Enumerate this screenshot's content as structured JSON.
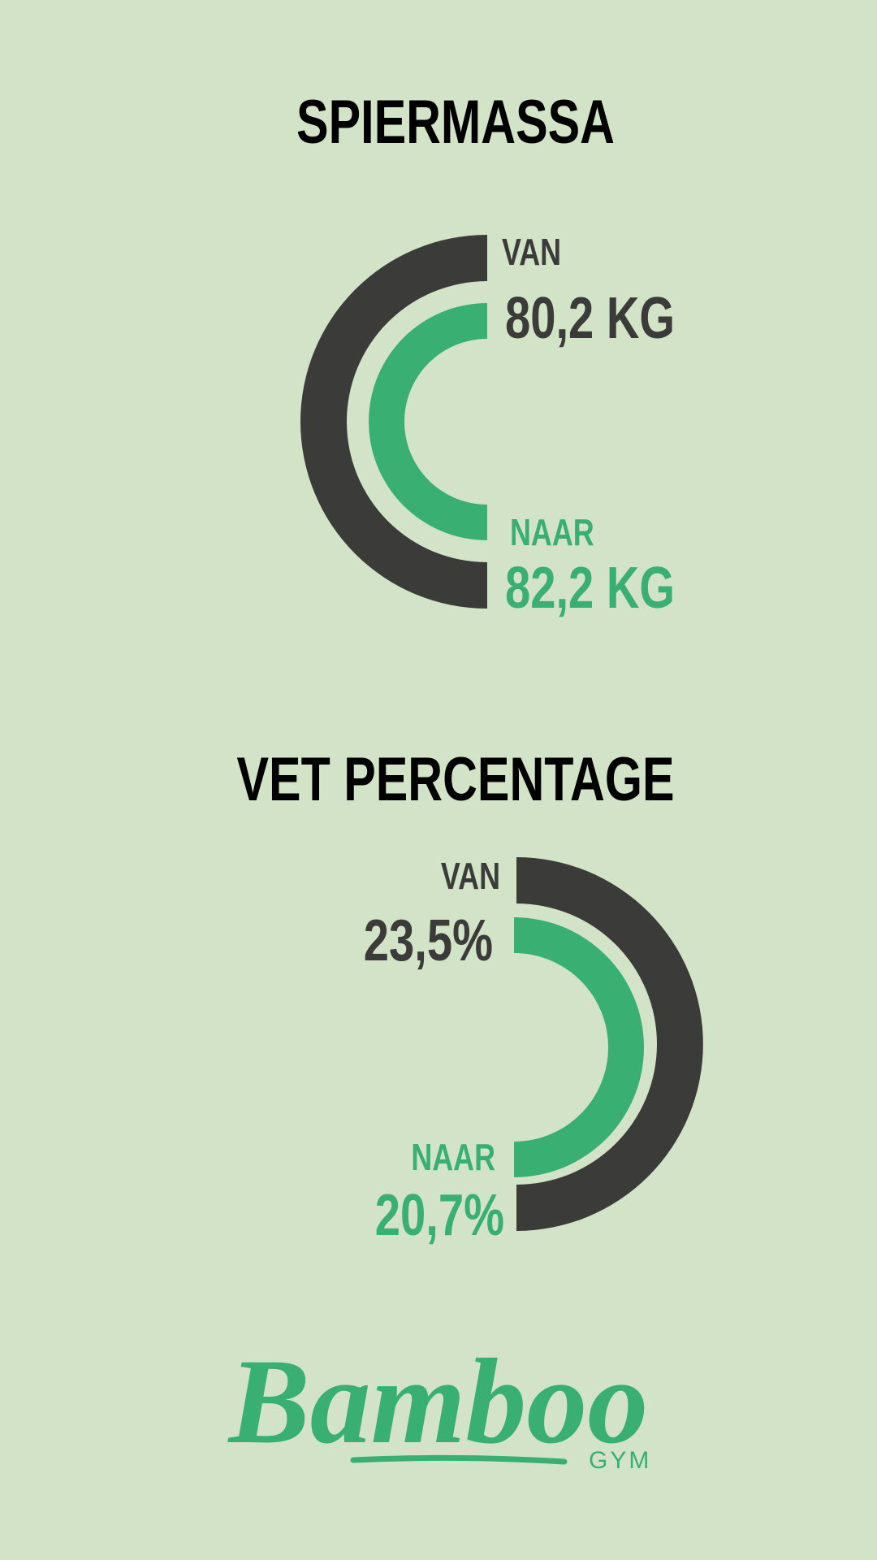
{
  "sections": [
    {
      "title": "SPIERMASSA",
      "from_label": "VAN",
      "from_value": "80,2 KG",
      "to_label": "NAAR",
      "to_value": "82,2 KG"
    },
    {
      "title": "VET PERCENTAGE",
      "from_label": "VAN",
      "from_value": "23,5%",
      "to_label": "NAAR",
      "to_value": "20,7%"
    }
  ],
  "logo": {
    "name": "Bamboo",
    "suffix": "GYM"
  }
}
